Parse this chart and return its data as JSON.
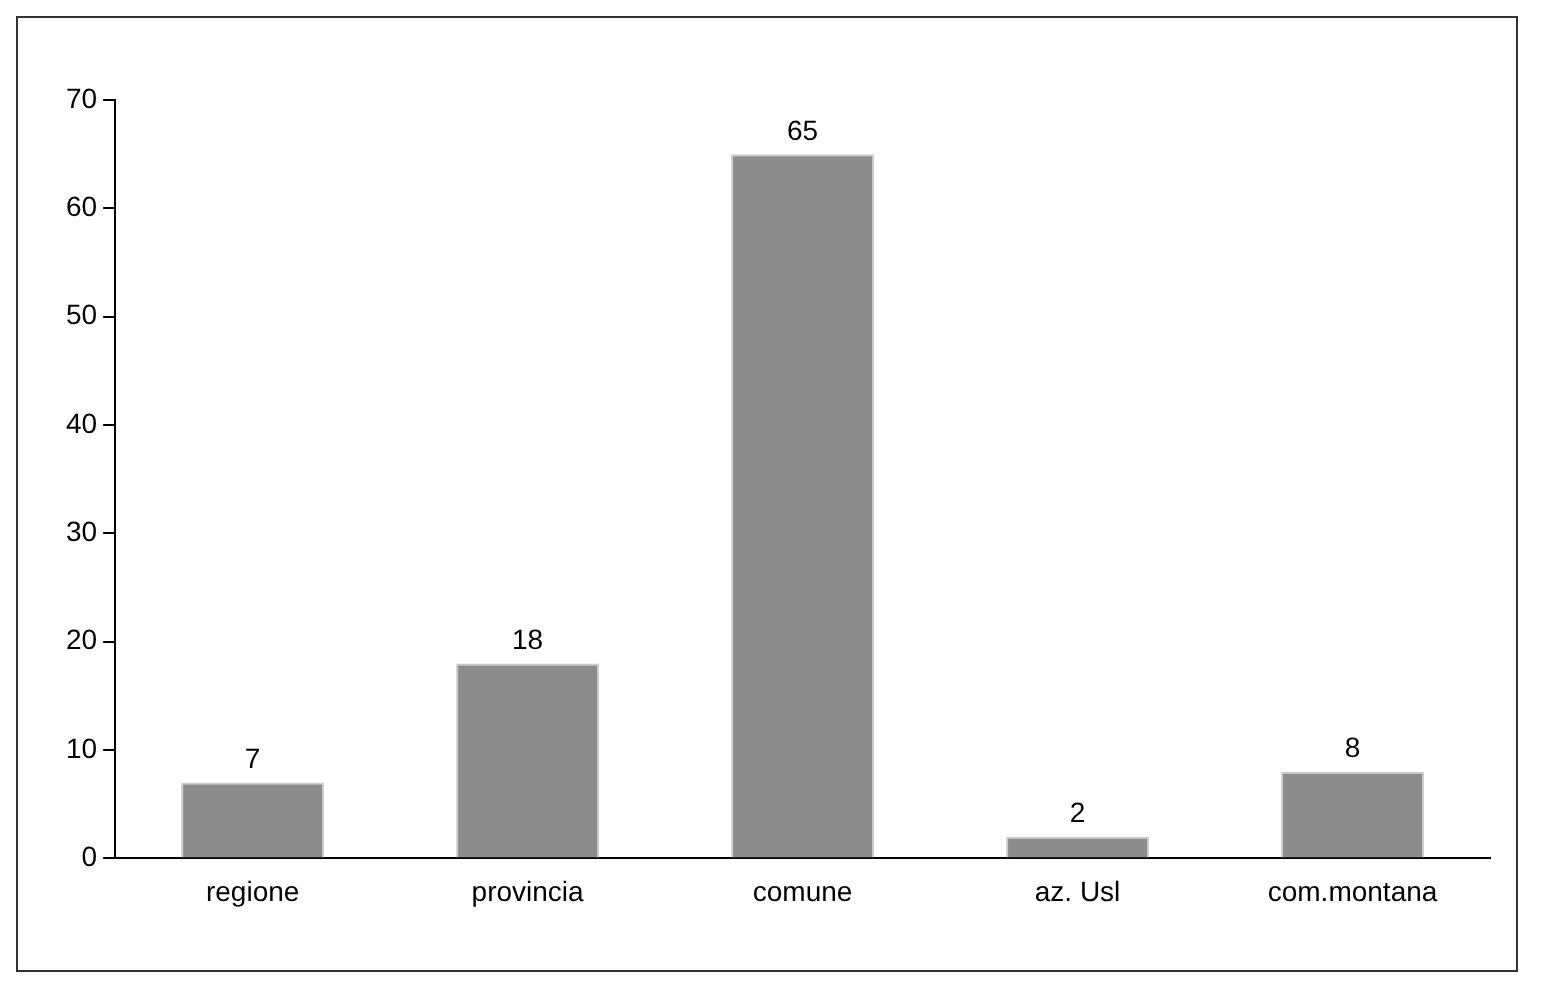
{
  "chart_data": {
    "type": "bar",
    "categories": [
      "regione",
      "provincia",
      "comune",
      "az. Usl",
      "com.montana"
    ],
    "values": [
      7,
      18,
      65,
      2,
      8
    ],
    "color": "#8c8c8c",
    "ylim": [
      0,
      70
    ],
    "yticks": [
      0,
      10,
      20,
      30,
      40,
      50,
      60,
      70
    ],
    "grid": false,
    "data_labels": true
  }
}
